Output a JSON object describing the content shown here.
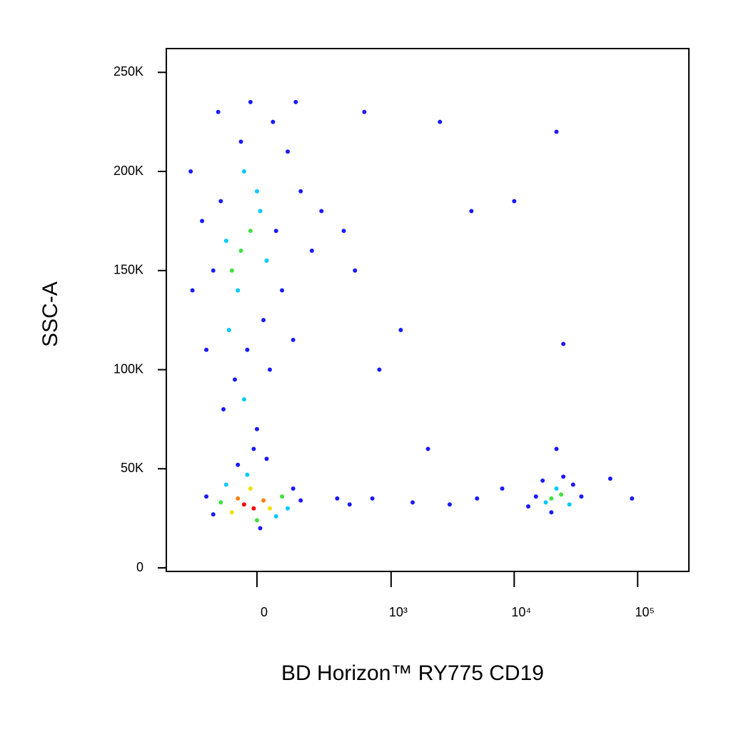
{
  "chart_data": {
    "type": "scatter",
    "xlabel": "BD Horizon™ RY775 CD19",
    "ylabel": "SSC-A",
    "xscale": "biexponential",
    "xlim": [
      -432,
      260000
    ],
    "xticks": [
      {
        "value": 0,
        "label": "0"
      },
      {
        "value": 1000,
        "label": "10³"
      },
      {
        "value": 10000,
        "label": "10⁴"
      },
      {
        "value": 100000,
        "label": "10⁵"
      }
    ],
    "ylim": [
      -1800,
      262000
    ],
    "yticks": [
      {
        "value": 0,
        "label": "0"
      },
      {
        "value": 50000,
        "label": "50K"
      },
      {
        "value": 100000,
        "label": "100K"
      },
      {
        "value": 150000,
        "label": "150K"
      },
      {
        "value": 200000,
        "label": "200K"
      },
      {
        "value": 250000,
        "label": "250K"
      }
    ],
    "x": [
      -40,
      -10,
      -60,
      20,
      -80,
      40,
      -20,
      -120,
      80,
      -100,
      60,
      0,
      -150,
      120,
      -30,
      100,
      -180,
      150,
      10,
      -60,
      30,
      -50,
      -20,
      -80,
      10,
      -100,
      30,
      -60,
      0,
      -120,
      60,
      -40,
      -150,
      80,
      -90,
      -30,
      20,
      -70,
      40,
      -110,
      0,
      -50,
      50,
      -130,
      100,
      -200,
      150,
      -250,
      200,
      -20,
      130,
      -180,
      120,
      -260,
      250,
      -40,
      -10,
      400,
      500,
      350,
      450,
      700,
      1500,
      3000,
      5000,
      2000,
      1200,
      800,
      2500,
      4500,
      10000,
      600,
      8000,
      20000,
      18000,
      24000,
      15000,
      28000,
      22000,
      13000,
      30000,
      20000,
      25000,
      17000,
      35000,
      22000,
      22000,
      25000,
      60000,
      90000
    ],
    "y": [
      32000,
      30000,
      35000,
      34000,
      28000,
      30000,
      40000,
      33000,
      36000,
      42000,
      26000,
      24000,
      27000,
      40000,
      47000,
      30000,
      36000,
      34000,
      20000,
      52000,
      55000,
      160000,
      170000,
      150000,
      180000,
      165000,
      155000,
      140000,
      190000,
      185000,
      170000,
      200000,
      150000,
      140000,
      120000,
      110000,
      125000,
      95000,
      100000,
      80000,
      70000,
      215000,
      225000,
      230000,
      210000,
      175000,
      190000,
      140000,
      160000,
      235000,
      235000,
      110000,
      115000,
      200000,
      180000,
      85000,
      60000,
      170000,
      150000,
      35000,
      32000,
      35000,
      33000,
      32000,
      35000,
      60000,
      120000,
      100000,
      225000,
      180000,
      185000,
      230000,
      40000,
      35000,
      33000,
      37000,
      36000,
      32000,
      40000,
      31000,
      42000,
      28000,
      46000,
      44000,
      36000,
      60000,
      220000,
      113000,
      45000,
      35000
    ],
    "colors": [
      "#ff0000",
      "#ff0000",
      "#ff8000",
      "#ff8000",
      "#f0e000",
      "#f0e000",
      "#f0e000",
      "#40e040",
      "#40e040",
      "#00c8ff",
      "#00c8ff",
      "#40e040",
      "#1a1aff",
      "#1a1aff",
      "#00c8ff",
      "#00c8ff",
      "#1a1aff",
      "#1a1aff",
      "#1a1aff",
      "#1a1aff",
      "#1a1aff",
      "#40e040",
      "#40e040",
      "#40e040",
      "#00c8ff",
      "#00c8ff",
      "#00c8ff",
      "#00c8ff",
      "#00c8ff",
      "#1a1aff",
      "#1a1aff",
      "#00c8ff",
      "#1a1aff",
      "#1a1aff",
      "#00c8ff",
      "#1a1aff",
      "#1a1aff",
      "#1a1aff",
      "#1a1aff",
      "#1a1aff",
      "#1a1aff",
      "#1a1aff",
      "#1a1aff",
      "#1a1aff",
      "#1a1aff",
      "#1a1aff",
      "#1a1aff",
      "#1a1aff",
      "#1a1aff",
      "#1a1aff",
      "#1a1aff",
      "#1a1aff",
      "#1a1aff",
      "#1a1aff",
      "#1a1aff",
      "#00c8ff",
      "#1a1aff",
      "#1a1aff",
      "#1a1aff",
      "#1a1aff",
      "#1a1aff",
      "#1a1aff",
      "#1a1aff",
      "#1a1aff",
      "#1a1aff",
      "#1a1aff",
      "#1a1aff",
      "#1a1aff",
      "#1a1aff",
      "#1a1aff",
      "#1a1aff",
      "#1a1aff",
      "#1a1aff",
      "#40e040",
      "#00c8ff",
      "#40e040",
      "#1a1aff",
      "#00c8ff",
      "#00c8ff",
      "#1a1aff",
      "#1a1aff",
      "#1a1aff",
      "#1a1aff",
      "#1a1aff",
      "#1a1aff",
      "#1a1aff",
      "#1a1aff",
      "#1a1aff",
      "#1a1aff",
      "#1a1aff"
    ]
  }
}
